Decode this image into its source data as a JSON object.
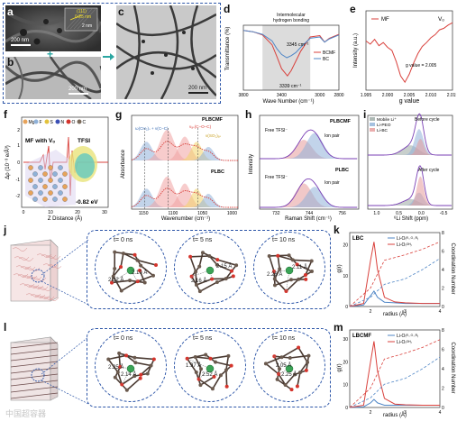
{
  "panels": {
    "a": "a",
    "b": "b",
    "c": "c",
    "d": "d",
    "e": "e",
    "f": "f",
    "g": "g",
    "h": "h",
    "i": "i",
    "j": "j",
    "k": "k",
    "l": "l",
    "m": "m"
  },
  "micro": {
    "scale_a": "200 nm",
    "scale_b": "200 nm",
    "scale_c": "200 nm",
    "lattice_a": "0.25 nm",
    "lattice_b": "(111)",
    "lattice_c": "2 nm",
    "plus": "+"
  },
  "colors": {
    "bcmf": "#d9413c",
    "bc": "#4f86c6",
    "mf": "#d9413c",
    "dashed_frame": "#2d56a8",
    "arrow": "#2aa6a1",
    "shade": "#dcdcdc"
  },
  "chart_data": [
    {
      "id": "d",
      "type": "line",
      "xlabel": "Wave Number (cm⁻¹)",
      "ylabel": "Transmittance (%)",
      "xlim": [
        3800,
        2800
      ],
      "x_ticks": [
        "3800",
        "3400",
        "3000",
        "2800"
      ],
      "annotations": {
        "title": "Intermolecular hydrogen bonding",
        "peak_bc": "3345 cm⁻¹",
        "peak_bcmf": "3339 cm⁻¹"
      },
      "series": [
        {
          "name": "BCMF",
          "color": "#d9413c",
          "x": [
            3800,
            3700,
            3600,
            3500,
            3450,
            3400,
            3339,
            3300,
            3250,
            3200,
            3100,
            3000,
            2950,
            2900,
            2800
          ],
          "y": [
            0.92,
            0.9,
            0.85,
            0.7,
            0.52,
            0.33,
            0.22,
            0.3,
            0.45,
            0.6,
            0.82,
            0.84,
            0.74,
            0.8,
            0.86
          ]
        },
        {
          "name": "BC",
          "color": "#4f86c6",
          "x": [
            3800,
            3700,
            3600,
            3500,
            3450,
            3400,
            3345,
            3300,
            3250,
            3200,
            3100,
            3000,
            2950,
            2900,
            2800
          ],
          "y": [
            0.92,
            0.9,
            0.86,
            0.76,
            0.64,
            0.55,
            0.5,
            0.53,
            0.58,
            0.66,
            0.8,
            0.82,
            0.74,
            0.79,
            0.85
          ]
        }
      ]
    },
    {
      "id": "e",
      "type": "line",
      "xlabel": "g value",
      "ylabel": "Intensity (a.u.)",
      "xlim": [
        1.995,
        2.015
      ],
      "x_ticks": [
        "1.995",
        "2.000",
        "2.005",
        "2.010",
        "2.015"
      ],
      "annotations": {
        "vf_label": "Vₒ",
        "g_note": "g value = 2.005"
      },
      "series": [
        {
          "name": "MF",
          "color": "#d9413c",
          "x": [
            1.995,
            1.996,
            1.997,
            1.998,
            1.999,
            2.0,
            2.001,
            2.002,
            2.003,
            2.004,
            2.005,
            2.006,
            2.007,
            2.008,
            2.009,
            2.01,
            2.011,
            2.012,
            2.013,
            2.014,
            2.015
          ],
          "y": [
            0.62,
            0.58,
            0.64,
            0.56,
            0.6,
            0.54,
            0.5,
            0.36,
            0.18,
            0.1,
            0.2,
            0.34,
            0.46,
            0.55,
            0.6,
            0.66,
            0.7,
            0.76,
            0.78,
            0.82,
            0.85
          ]
        }
      ]
    },
    {
      "id": "g",
      "type": "line",
      "xlabel": "Wavenumber (cm⁻¹)",
      "ylabel": "Absorbance",
      "x_ticks": [
        "1150",
        "1100",
        "1050",
        "1000"
      ],
      "annotations": {
        "top": "PLBCMF",
        "bottom": "PLBC",
        "a1": "ω(CH₂)ₛ + ν(C–C)",
        "a2": "νₐₛ(C–O–C)",
        "a3": "ν(SO₂)ₐₛ"
      }
    },
    {
      "id": "h",
      "type": "line",
      "xlabel": "Raman Shift (cm⁻¹)",
      "ylabel": "Intensity",
      "x_ticks": [
        "732",
        "744",
        "756"
      ],
      "annotations": {
        "top": "PLBCMF",
        "bottom": "PLBC",
        "free": "Free TFSI⁻",
        "ion": "Ion pair"
      }
    },
    {
      "id": "i",
      "type": "line",
      "xlabel": "⁶Li Shift (ppm)",
      "ylabel": "",
      "x_ticks": [
        "1.0",
        "0.5",
        "0.0",
        "-0.5"
      ],
      "legend": [
        "Mobile Li⁺",
        "Li-PEO",
        "Li-BC"
      ],
      "annotations": {
        "before": "Before cycle",
        "after": "After cycle"
      }
    },
    {
      "id": "k",
      "type": "line",
      "xlabel": "radius (Å)",
      "ylabel": "g(r)",
      "y2label": "Coordination Number",
      "x_ticks": [
        "2",
        "3",
        "4"
      ],
      "y_ticks": [
        "0",
        "10",
        "20"
      ],
      "y2_ticks": [
        "0",
        "2",
        "4",
        "6",
        "8"
      ],
      "annotations": {
        "title": "LBC"
      },
      "series": [
        {
          "name": "Li-O₍ᴿ₋ᴼ₋ᴿ₎",
          "color": "#4f86c6",
          "x": [
            1.4,
            1.8,
            2.0,
            2.1,
            2.2,
            2.4,
            2.7,
            3.0,
            3.5,
            4.0
          ],
          "y": [
            0,
            0.5,
            3.5,
            5.0,
            3.0,
            1.4,
            1.2,
            1.0,
            1.0,
            1.0
          ]
        },
        {
          "name": "Li-O₍ᴼᴴ₎",
          "color": "#d9413c",
          "x": [
            1.4,
            1.8,
            2.0,
            2.1,
            2.2,
            2.4,
            2.7,
            3.0,
            3.5,
            4.0
          ],
          "y": [
            0,
            1.0,
            15.0,
            21.0,
            12.0,
            3.0,
            1.5,
            1.2,
            1.0,
            1.0
          ]
        }
      ]
    },
    {
      "id": "m",
      "type": "line",
      "xlabel": "radius (Å)",
      "ylabel": "g(r)",
      "y2label": "Coordination Number",
      "x_ticks": [
        "2",
        "3",
        "4"
      ],
      "y_ticks": [
        "0",
        "10",
        "20",
        "30"
      ],
      "y2_ticks": [
        "0",
        "2",
        "4",
        "6",
        "8"
      ],
      "annotations": {
        "title": "LBCMF"
      },
      "series": [
        {
          "name": "Li-O₍ᴿ₋ᴼ₋ᴿ₎",
          "color": "#4f86c6",
          "x": [
            1.4,
            1.8,
            2.0,
            2.1,
            2.2,
            2.4,
            2.7,
            3.0,
            3.5,
            4.0
          ],
          "y": [
            0,
            0.3,
            2.0,
            3.5,
            2.0,
            1.0,
            1.0,
            1.0,
            1.0,
            1.0
          ]
        },
        {
          "name": "Li-O₍ᴼᴴ₎",
          "color": "#d9413c",
          "x": [
            1.4,
            1.8,
            2.0,
            2.1,
            2.2,
            2.4,
            2.7,
            3.0,
            3.5,
            4.0
          ],
          "y": [
            0,
            1.0,
            20.0,
            29.0,
            16.0,
            4.0,
            1.5,
            1.2,
            1.0,
            1.0
          ]
        }
      ]
    }
  ],
  "f": {
    "ylabel": "Δρ (10⁻³ e/Å³)",
    "xlabel": "Z Distance (Å)",
    "title": "MF with Vₒ",
    "tfsi": "TFSI",
    "energy": "-0.82 eV",
    "x_ticks": [
      "0",
      "10",
      "20",
      "30"
    ],
    "y_ticks": [
      "2",
      "1",
      "0",
      "-1",
      "-2"
    ],
    "legend": [
      {
        "label": "Mg",
        "color": "#e7a35a"
      },
      {
        "label": "F",
        "color": "#8fb1d8"
      },
      {
        "label": "S",
        "color": "#e3c23b"
      },
      {
        "label": "N",
        "color": "#3a4fb5"
      },
      {
        "label": "O",
        "color": "#d4342c"
      },
      {
        "label": "C",
        "color": "#7a6a5a"
      }
    ]
  },
  "md": {
    "j": [
      {
        "time": "t= 0 ns",
        "d1": "2.32 Å",
        "d2": "2.10 Å"
      },
      {
        "time": "t= 5 ns",
        "d1": "2.16 Å",
        "d2": "2.15 Å"
      },
      {
        "time": "t= 10 ns",
        "d1": "2.26 Å",
        "d2": "2.11 Å"
      }
    ],
    "l": [
      {
        "time": "t= 0 ns",
        "d1": "2.25 Å",
        "d2": "2.14 Å"
      },
      {
        "time": "t= 5 ns",
        "d1": "1.97 Å",
        "d2": "2.52 Å"
      },
      {
        "time": "t= 10 ns",
        "d1": "2.05 Å",
        "d2": "2.25 Å"
      }
    ]
  },
  "watermark": "中国超容器"
}
